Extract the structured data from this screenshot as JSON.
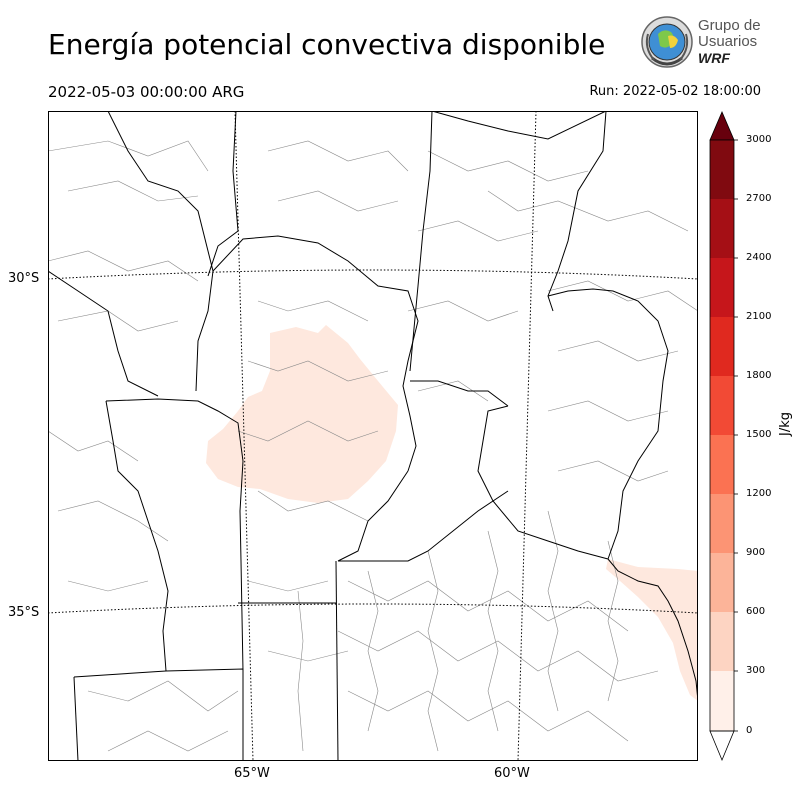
{
  "header": {
    "title": "Energía potencial convectiva disponible",
    "valid_time": "2022-05-03 00:00:00 ARG",
    "run_time": "Run: 2022-05-02 18:00:00"
  },
  "logo": {
    "line1": "Grupo de",
    "line2": "Usuarios",
    "line3": "WRF"
  },
  "map": {
    "lat_labels": [
      "30°S",
      "35°S"
    ],
    "lon_labels": [
      "65°W",
      "60°W"
    ],
    "fill_color": "#fee8de",
    "border_color": "#000000",
    "department_color": "#8a8a8a"
  },
  "colorbar": {
    "unit": "J/kg",
    "ticks": [
      "3000",
      "2700",
      "2400",
      "2100",
      "1800",
      "1500",
      "1200",
      "900",
      "600",
      "300",
      "0"
    ],
    "colors": [
      "#fff0e9",
      "#fdd4c2",
      "#fcb499",
      "#fc9474",
      "#fb7252",
      "#f24a35",
      "#e0291f",
      "#c6161b",
      "#a50f15",
      "#800a10",
      "#67000d"
    ]
  }
}
